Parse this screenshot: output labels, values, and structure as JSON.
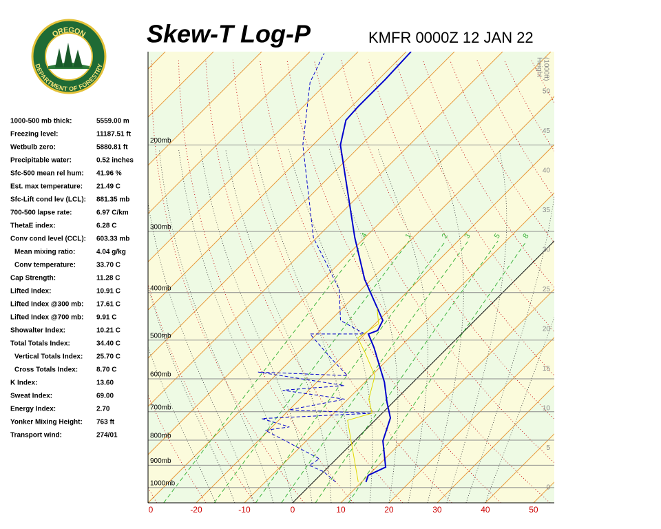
{
  "logo": {
    "top": "OREGON",
    "bottom": "DEPARTMENT OF FORESTRY"
  },
  "stats": [
    {
      "label": "1000-500 mb thick:",
      "value": "5559.00 m"
    },
    {
      "label": "Freezing level:",
      "value": "11187.51 ft"
    },
    {
      "label": "Wetbulb zero:",
      "value": "5880.81 ft"
    },
    {
      "label": "Precipitable water:",
      "value": "0.52 inches"
    },
    {
      "label": "Sfc-500 mean rel hum:",
      "value": "41.96 %"
    },
    {
      "label": "Est. max temperature:",
      "value": "21.49 C"
    },
    {
      "label": "Sfc-Lift cond lev (LCL):",
      "value": "881.35 mb"
    },
    {
      "label": "700-500 lapse rate:",
      "value": "6.97 C/km"
    },
    {
      "label": "ThetaE index:",
      "value": "6.28 C"
    },
    {
      "label": "Conv cond level (CCL):",
      "value": "603.33 mb"
    },
    {
      "label": "Mean mixing ratio:",
      "value": "4.04 g/kg"
    },
    {
      "label": "Conv temperature:",
      "value": "33.70 C"
    },
    {
      "label": "Cap Strength:",
      "value": "11.28 C"
    },
    {
      "label": "Lifted Index:",
      "value": "10.91 C"
    },
    {
      "label": "Lifted Index @300 mb:",
      "value": "17.61 C"
    },
    {
      "label": "Lifted Index @700 mb:",
      "value": "9.91 C"
    },
    {
      "label": "Showalter Index:",
      "value": "10.21 C"
    },
    {
      "label": "Total Totals Index:",
      "value": "34.40 C"
    },
    {
      "label": "Vertical Totals Index:",
      "value": "25.70 C"
    },
    {
      "label": "Cross Totals Index:",
      "value": "8.70 C"
    },
    {
      "label": "K Index:",
      "value": "13.60"
    },
    {
      "label": "Sweat Index:",
      "value": "69.00"
    },
    {
      "label": "Energy Index:",
      "value": "2.70"
    },
    {
      "label": "Yonker Mixing Height:",
      "value": "763 ft"
    },
    {
      "label": "Transport wind:",
      "value": "274/01"
    }
  ],
  "chart_data": {
    "type": "skewt",
    "title": "Skew-T Log-P",
    "subtitle": "KMFR 0000Z 12 JAN 22",
    "ylim": [
      1074,
      129
    ],
    "yticks": [
      {
        "value": 1000,
        "label": "1000mb"
      },
      {
        "value": 900,
        "label": "900mb"
      },
      {
        "value": 800,
        "label": "800mb"
      },
      {
        "value": 700,
        "label": "700mb"
      },
      {
        "value": 600,
        "label": "600mb"
      },
      {
        "value": 500,
        "label": "500mb"
      },
      {
        "value": 400,
        "label": "400mb"
      },
      {
        "value": 300,
        "label": "300mb"
      },
      {
        "value": 200,
        "label": "200mb"
      }
    ],
    "xlim": [
      -30,
      54.3
    ],
    "xticks": [
      {
        "value": -30,
        "label": "0"
      },
      -20,
      -10,
      0,
      10,
      20,
      30,
      40,
      50
    ],
    "height_label": [
      "Height",
      "(1000ft)"
    ],
    "height_lim": [
      0,
      50
    ],
    "height_ticks": [
      0,
      5,
      10,
      15,
      20,
      25,
      30,
      35,
      40,
      45,
      50
    ],
    "mixing_ratio_lines": [
      {
        "value": 0.4,
        "label": ".4"
      },
      1,
      2,
      3,
      5,
      8
    ],
    "series": [
      {
        "color": "#0000cc",
        "style": "solid",
        "pressure": [
          974,
          944,
          908,
          803,
          721,
          668,
          609,
          518,
          486,
          478,
          456,
          376,
          309,
          200,
          178,
          167,
          147,
          129
        ],
        "values": [
          10.9,
          10.0,
          11.9,
          5.9,
          2.7,
          -1.4,
          -6.0,
          -15.3,
          -19.3,
          -18.1,
          -19.1,
          -31.4,
          -42.1,
          -64.3,
          -68.3,
          -68.6,
          -68.6,
          -69
        ]
      },
      {
        "color": "#0000cc",
        "style": "dashed",
        "pressure": [
          974,
          928,
          901,
          873,
          764,
          752,
          723,
          705,
          694,
          660,
          633,
          619,
          581,
          591,
          544,
          486,
          486,
          456,
          394,
          309,
          200,
          149,
          130
        ],
        "values": [
          4.6,
          0,
          -4.3,
          -3.6,
          -20.7,
          -16.4,
          -23.9,
          -2.1,
          -20,
          -10.7,
          -25.4,
          -13.6,
          -34.3,
          -15,
          -22.1,
          -31.4,
          -20,
          -27.9,
          -34.6,
          -50.7,
          -72.1,
          -83.6,
          -86.7
        ]
      },
      {
        "color": "#e0d800",
        "style": "solid",
        "pressure": [
          974,
          803,
          729,
          705,
          660,
          591,
          528,
          495,
          463,
          430
        ],
        "values": [
          9.3,
          -0.7,
          -5.7,
          -2.1,
          -5.7,
          -9.3,
          -16.4,
          -20.7,
          -19.3,
          -22.9
        ]
      }
    ]
  }
}
